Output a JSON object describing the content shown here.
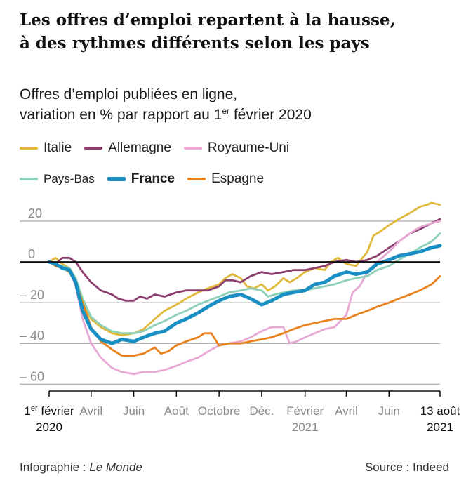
{
  "title": {
    "line1": "Les offres d’emploi repartent à la hausse,",
    "line2": "à des rythmes différents selon les pays"
  },
  "subtitle": {
    "line1": "Offres d’emploi publiées en ligne,",
    "line2_prefix": "variation en % par rapport au 1",
    "line2_sup": "er",
    "line2_suffix": " février 2020"
  },
  "footer": {
    "credit_prefix": "Infographie : ",
    "credit_name": "Le Monde",
    "source": "Source : Indeed"
  },
  "chart_data": {
    "type": "line",
    "ylim": [
      -63,
      30
    ],
    "y_ticks": [
      {
        "value": 20,
        "label": "20"
      },
      {
        "value": 0,
        "label": "0"
      },
      {
        "value": -20,
        "label": "– 20"
      },
      {
        "value": -40,
        "label": "– 40"
      },
      {
        "value": -60,
        "label": "– 60"
      }
    ],
    "x_ticks": [
      {
        "date": "2020-02-01",
        "line1_prefix": "1",
        "line1_sup": "er",
        "line1_suffix": " février",
        "line2": "2020",
        "emphasis": true
      },
      {
        "date": "2020-04-01",
        "line1": "Avril",
        "line2": ""
      },
      {
        "date": "2020-06-01",
        "line1": "Juin",
        "line2": ""
      },
      {
        "date": "2020-08-01",
        "line1": "Août",
        "line2": ""
      },
      {
        "date": "2020-10-01",
        "line1": "Octobre",
        "line2": ""
      },
      {
        "date": "2020-12-01",
        "line1": "Déc.",
        "line2": ""
      },
      {
        "date": "2021-02-01",
        "line1": "Février",
        "line2": "2021"
      },
      {
        "date": "2021-04-01",
        "line1": "Avril",
        "line2": ""
      },
      {
        "date": "2021-06-01",
        "line1": "Juin",
        "line2": ""
      },
      {
        "date": "2021-08-13",
        "line1": "13 août",
        "line2": "2021",
        "emphasis": true
      }
    ],
    "grid": true,
    "legend_placement": "top",
    "series": [
      {
        "name": "Italie",
        "color": "#e0b83c",
        "bold": false,
        "points": [
          [
            "2020-02-01",
            0
          ],
          [
            "2020-02-10",
            2
          ],
          [
            "2020-02-20",
            -1
          ],
          [
            "2020-03-01",
            -3
          ],
          [
            "2020-03-10",
            -8
          ],
          [
            "2020-03-20",
            -20
          ],
          [
            "2020-04-01",
            -28
          ],
          [
            "2020-04-15",
            -32
          ],
          [
            "2020-05-01",
            -35
          ],
          [
            "2020-05-15",
            -36
          ],
          [
            "2020-06-01",
            -35
          ],
          [
            "2020-06-15",
            -33
          ],
          [
            "2020-07-01",
            -28
          ],
          [
            "2020-07-15",
            -24
          ],
          [
            "2020-08-01",
            -21
          ],
          [
            "2020-08-15",
            -18
          ],
          [
            "2020-09-01",
            -15
          ],
          [
            "2020-09-15",
            -13
          ],
          [
            "2020-10-01",
            -11
          ],
          [
            "2020-10-10",
            -8
          ],
          [
            "2020-10-20",
            -6
          ],
          [
            "2020-11-01",
            -8
          ],
          [
            "2020-11-10",
            -12
          ],
          [
            "2020-11-20",
            -13
          ],
          [
            "2020-12-01",
            -11
          ],
          [
            "2020-12-10",
            -14
          ],
          [
            "2020-12-20",
            -12
          ],
          [
            "2021-01-01",
            -8
          ],
          [
            "2021-01-10",
            -10
          ],
          [
            "2021-01-20",
            -8
          ],
          [
            "2021-02-01",
            -5
          ],
          [
            "2021-02-15",
            -3
          ],
          [
            "2021-03-01",
            -4
          ],
          [
            "2021-03-10",
            0
          ],
          [
            "2021-03-20",
            2
          ],
          [
            "2021-04-01",
            -1
          ],
          [
            "2021-04-15",
            -2
          ],
          [
            "2021-05-01",
            5
          ],
          [
            "2021-05-10",
            13
          ],
          [
            "2021-05-20",
            15
          ],
          [
            "2021-06-01",
            18
          ],
          [
            "2021-06-15",
            21
          ],
          [
            "2021-07-01",
            24
          ],
          [
            "2021-07-15",
            27
          ],
          [
            "2021-07-25",
            28
          ],
          [
            "2021-08-01",
            29
          ],
          [
            "2021-08-13",
            28
          ]
        ]
      },
      {
        "name": "Allemagne",
        "color": "#8c3e6e",
        "bold": false,
        "points": [
          [
            "2020-02-01",
            0
          ],
          [
            "2020-02-10",
            -1
          ],
          [
            "2020-02-20",
            2
          ],
          [
            "2020-03-01",
            2
          ],
          [
            "2020-03-10",
            0
          ],
          [
            "2020-03-20",
            -5
          ],
          [
            "2020-04-01",
            -10
          ],
          [
            "2020-04-15",
            -14
          ],
          [
            "2020-05-01",
            -16
          ],
          [
            "2020-05-10",
            -18
          ],
          [
            "2020-05-20",
            -19
          ],
          [
            "2020-06-01",
            -19
          ],
          [
            "2020-06-10",
            -17
          ],
          [
            "2020-06-20",
            -18
          ],
          [
            "2020-07-01",
            -16
          ],
          [
            "2020-07-15",
            -17
          ],
          [
            "2020-08-01",
            -15
          ],
          [
            "2020-08-15",
            -14
          ],
          [
            "2020-09-01",
            -14
          ],
          [
            "2020-09-15",
            -14
          ],
          [
            "2020-10-01",
            -12
          ],
          [
            "2020-10-10",
            -9
          ],
          [
            "2020-10-20",
            -9
          ],
          [
            "2020-11-01",
            -10
          ],
          [
            "2020-11-15",
            -7
          ],
          [
            "2020-12-01",
            -5
          ],
          [
            "2020-12-15",
            -6
          ],
          [
            "2021-01-01",
            -5
          ],
          [
            "2021-01-15",
            -4
          ],
          [
            "2021-02-01",
            -4
          ],
          [
            "2021-02-15",
            -3
          ],
          [
            "2021-03-01",
            -2
          ],
          [
            "2021-03-15",
            0
          ],
          [
            "2021-04-01",
            1
          ],
          [
            "2021-04-15",
            0
          ],
          [
            "2021-05-01",
            1
          ],
          [
            "2021-05-15",
            3
          ],
          [
            "2021-06-01",
            7
          ],
          [
            "2021-06-15",
            10
          ],
          [
            "2021-07-01",
            14
          ],
          [
            "2021-07-15",
            16
          ],
          [
            "2021-08-01",
            19
          ],
          [
            "2021-08-13",
            21
          ]
        ]
      },
      {
        "name": "Royaume-Uni",
        "color": "#e8a9d4",
        "bold": false,
        "points": [
          [
            "2020-02-01",
            0
          ],
          [
            "2020-02-10",
            -1
          ],
          [
            "2020-02-20",
            -2
          ],
          [
            "2020-03-01",
            -4
          ],
          [
            "2020-03-10",
            -12
          ],
          [
            "2020-03-20",
            -28
          ],
          [
            "2020-04-01",
            -40
          ],
          [
            "2020-04-15",
            -47
          ],
          [
            "2020-05-01",
            -52
          ],
          [
            "2020-05-15",
            -54
          ],
          [
            "2020-06-01",
            -55
          ],
          [
            "2020-06-15",
            -54
          ],
          [
            "2020-07-01",
            -54
          ],
          [
            "2020-07-15",
            -53
          ],
          [
            "2020-08-01",
            -51
          ],
          [
            "2020-08-15",
            -49
          ],
          [
            "2020-09-01",
            -47
          ],
          [
            "2020-09-15",
            -44
          ],
          [
            "2020-10-01",
            -41
          ],
          [
            "2020-10-15",
            -40
          ],
          [
            "2020-11-01",
            -39
          ],
          [
            "2020-11-15",
            -37
          ],
          [
            "2020-12-01",
            -34
          ],
          [
            "2020-12-15",
            -32
          ],
          [
            "2021-01-01",
            -32
          ],
          [
            "2021-01-10",
            -40
          ],
          [
            "2021-01-20",
            -39
          ],
          [
            "2021-02-01",
            -37
          ],
          [
            "2021-02-15",
            -35
          ],
          [
            "2021-03-01",
            -33
          ],
          [
            "2021-03-15",
            -32
          ],
          [
            "2021-04-01",
            -26
          ],
          [
            "2021-04-10",
            -15
          ],
          [
            "2021-04-20",
            -12
          ],
          [
            "2021-05-01",
            -5
          ],
          [
            "2021-05-15",
            0
          ],
          [
            "2021-06-01",
            5
          ],
          [
            "2021-06-15",
            10
          ],
          [
            "2021-07-01",
            14
          ],
          [
            "2021-07-15",
            17
          ],
          [
            "2021-08-01",
            19
          ],
          [
            "2021-08-13",
            20
          ]
        ]
      },
      {
        "name": "Pays-Bas",
        "color": "#8fd0b8",
        "bold": false,
        "points": [
          [
            "2020-02-01",
            0
          ],
          [
            "2020-02-10",
            -1
          ],
          [
            "2020-02-20",
            -2
          ],
          [
            "2020-03-01",
            -3
          ],
          [
            "2020-03-10",
            -8
          ],
          [
            "2020-03-20",
            -18
          ],
          [
            "2020-04-01",
            -27
          ],
          [
            "2020-04-15",
            -31
          ],
          [
            "2020-05-01",
            -34
          ],
          [
            "2020-05-15",
            -35
          ],
          [
            "2020-06-01",
            -35
          ],
          [
            "2020-06-15",
            -34
          ],
          [
            "2020-07-01",
            -31
          ],
          [
            "2020-07-15",
            -29
          ],
          [
            "2020-08-01",
            -26
          ],
          [
            "2020-08-15",
            -24
          ],
          [
            "2020-09-01",
            -21
          ],
          [
            "2020-09-15",
            -19
          ],
          [
            "2020-10-01",
            -17
          ],
          [
            "2020-10-15",
            -15
          ],
          [
            "2020-11-01",
            -14
          ],
          [
            "2020-11-15",
            -13
          ],
          [
            "2020-12-01",
            -14
          ],
          [
            "2020-12-10",
            -17
          ],
          [
            "2020-12-20",
            -16
          ],
          [
            "2021-01-01",
            -15
          ],
          [
            "2021-01-15",
            -14
          ],
          [
            "2021-02-01",
            -14
          ],
          [
            "2021-02-15",
            -13
          ],
          [
            "2021-03-01",
            -12
          ],
          [
            "2021-03-15",
            -11
          ],
          [
            "2021-04-01",
            -9
          ],
          [
            "2021-04-15",
            -8
          ],
          [
            "2021-05-01",
            -7
          ],
          [
            "2021-05-15",
            -4
          ],
          [
            "2021-06-01",
            -2
          ],
          [
            "2021-06-15",
            1
          ],
          [
            "2021-07-01",
            4
          ],
          [
            "2021-07-15",
            7
          ],
          [
            "2021-08-01",
            10
          ],
          [
            "2021-08-13",
            14
          ]
        ]
      },
      {
        "name": "France",
        "color": "#1a8fc4",
        "bold": true,
        "points": [
          [
            "2020-02-01",
            0
          ],
          [
            "2020-02-10",
            -1
          ],
          [
            "2020-02-20",
            -3
          ],
          [
            "2020-03-01",
            -4
          ],
          [
            "2020-03-10",
            -10
          ],
          [
            "2020-03-20",
            -24
          ],
          [
            "2020-04-01",
            -33
          ],
          [
            "2020-04-15",
            -38
          ],
          [
            "2020-05-01",
            -40
          ],
          [
            "2020-05-15",
            -38
          ],
          [
            "2020-06-01",
            -39
          ],
          [
            "2020-06-15",
            -37
          ],
          [
            "2020-07-01",
            -35
          ],
          [
            "2020-07-15",
            -34
          ],
          [
            "2020-08-01",
            -30
          ],
          [
            "2020-08-15",
            -28
          ],
          [
            "2020-09-01",
            -25
          ],
          [
            "2020-09-15",
            -22
          ],
          [
            "2020-10-01",
            -19
          ],
          [
            "2020-10-15",
            -17
          ],
          [
            "2020-11-01",
            -16
          ],
          [
            "2020-11-15",
            -18
          ],
          [
            "2020-12-01",
            -21
          ],
          [
            "2020-12-15",
            -19
          ],
          [
            "2021-01-01",
            -16
          ],
          [
            "2021-01-15",
            -15
          ],
          [
            "2021-02-01",
            -14
          ],
          [
            "2021-02-15",
            -11
          ],
          [
            "2021-03-01",
            -10
          ],
          [
            "2021-03-15",
            -7
          ],
          [
            "2021-04-01",
            -5
          ],
          [
            "2021-04-15",
            -6
          ],
          [
            "2021-05-01",
            -5
          ],
          [
            "2021-05-15",
            -1
          ],
          [
            "2021-06-01",
            1
          ],
          [
            "2021-06-15",
            3
          ],
          [
            "2021-07-01",
            4
          ],
          [
            "2021-07-15",
            5
          ],
          [
            "2021-08-01",
            7
          ],
          [
            "2021-08-13",
            8
          ]
        ]
      },
      {
        "name": "Espagne",
        "color": "#e8821c",
        "bold": false,
        "points": [
          [
            "2020-02-01",
            0
          ],
          [
            "2020-02-10",
            -2
          ],
          [
            "2020-02-20",
            -3
          ],
          [
            "2020-03-01",
            -5
          ],
          [
            "2020-03-10",
            -10
          ],
          [
            "2020-03-20",
            -20
          ],
          [
            "2020-04-01",
            -32
          ],
          [
            "2020-04-15",
            -39
          ],
          [
            "2020-05-01",
            -43
          ],
          [
            "2020-05-15",
            -46
          ],
          [
            "2020-06-01",
            -46
          ],
          [
            "2020-06-15",
            -45
          ],
          [
            "2020-07-01",
            -42
          ],
          [
            "2020-07-10",
            -45
          ],
          [
            "2020-07-20",
            -44
          ],
          [
            "2020-08-01",
            -41
          ],
          [
            "2020-08-15",
            -39
          ],
          [
            "2020-09-01",
            -37
          ],
          [
            "2020-09-10",
            -35
          ],
          [
            "2020-09-20",
            -35
          ],
          [
            "2020-10-01",
            -41
          ],
          [
            "2020-10-15",
            -40
          ],
          [
            "2020-11-01",
            -40
          ],
          [
            "2020-11-15",
            -39
          ],
          [
            "2020-12-01",
            -38
          ],
          [
            "2020-12-15",
            -37
          ],
          [
            "2021-01-01",
            -35
          ],
          [
            "2021-01-15",
            -33
          ],
          [
            "2021-02-01",
            -31
          ],
          [
            "2021-02-15",
            -30
          ],
          [
            "2021-03-01",
            -29
          ],
          [
            "2021-03-15",
            -28
          ],
          [
            "2021-04-01",
            -28
          ],
          [
            "2021-04-15",
            -26
          ],
          [
            "2021-05-01",
            -24
          ],
          [
            "2021-05-15",
            -22
          ],
          [
            "2021-06-01",
            -20
          ],
          [
            "2021-06-15",
            -18
          ],
          [
            "2021-07-01",
            -16
          ],
          [
            "2021-07-15",
            -14
          ],
          [
            "2021-08-01",
            -11
          ],
          [
            "2021-08-13",
            -7
          ]
        ]
      }
    ]
  }
}
